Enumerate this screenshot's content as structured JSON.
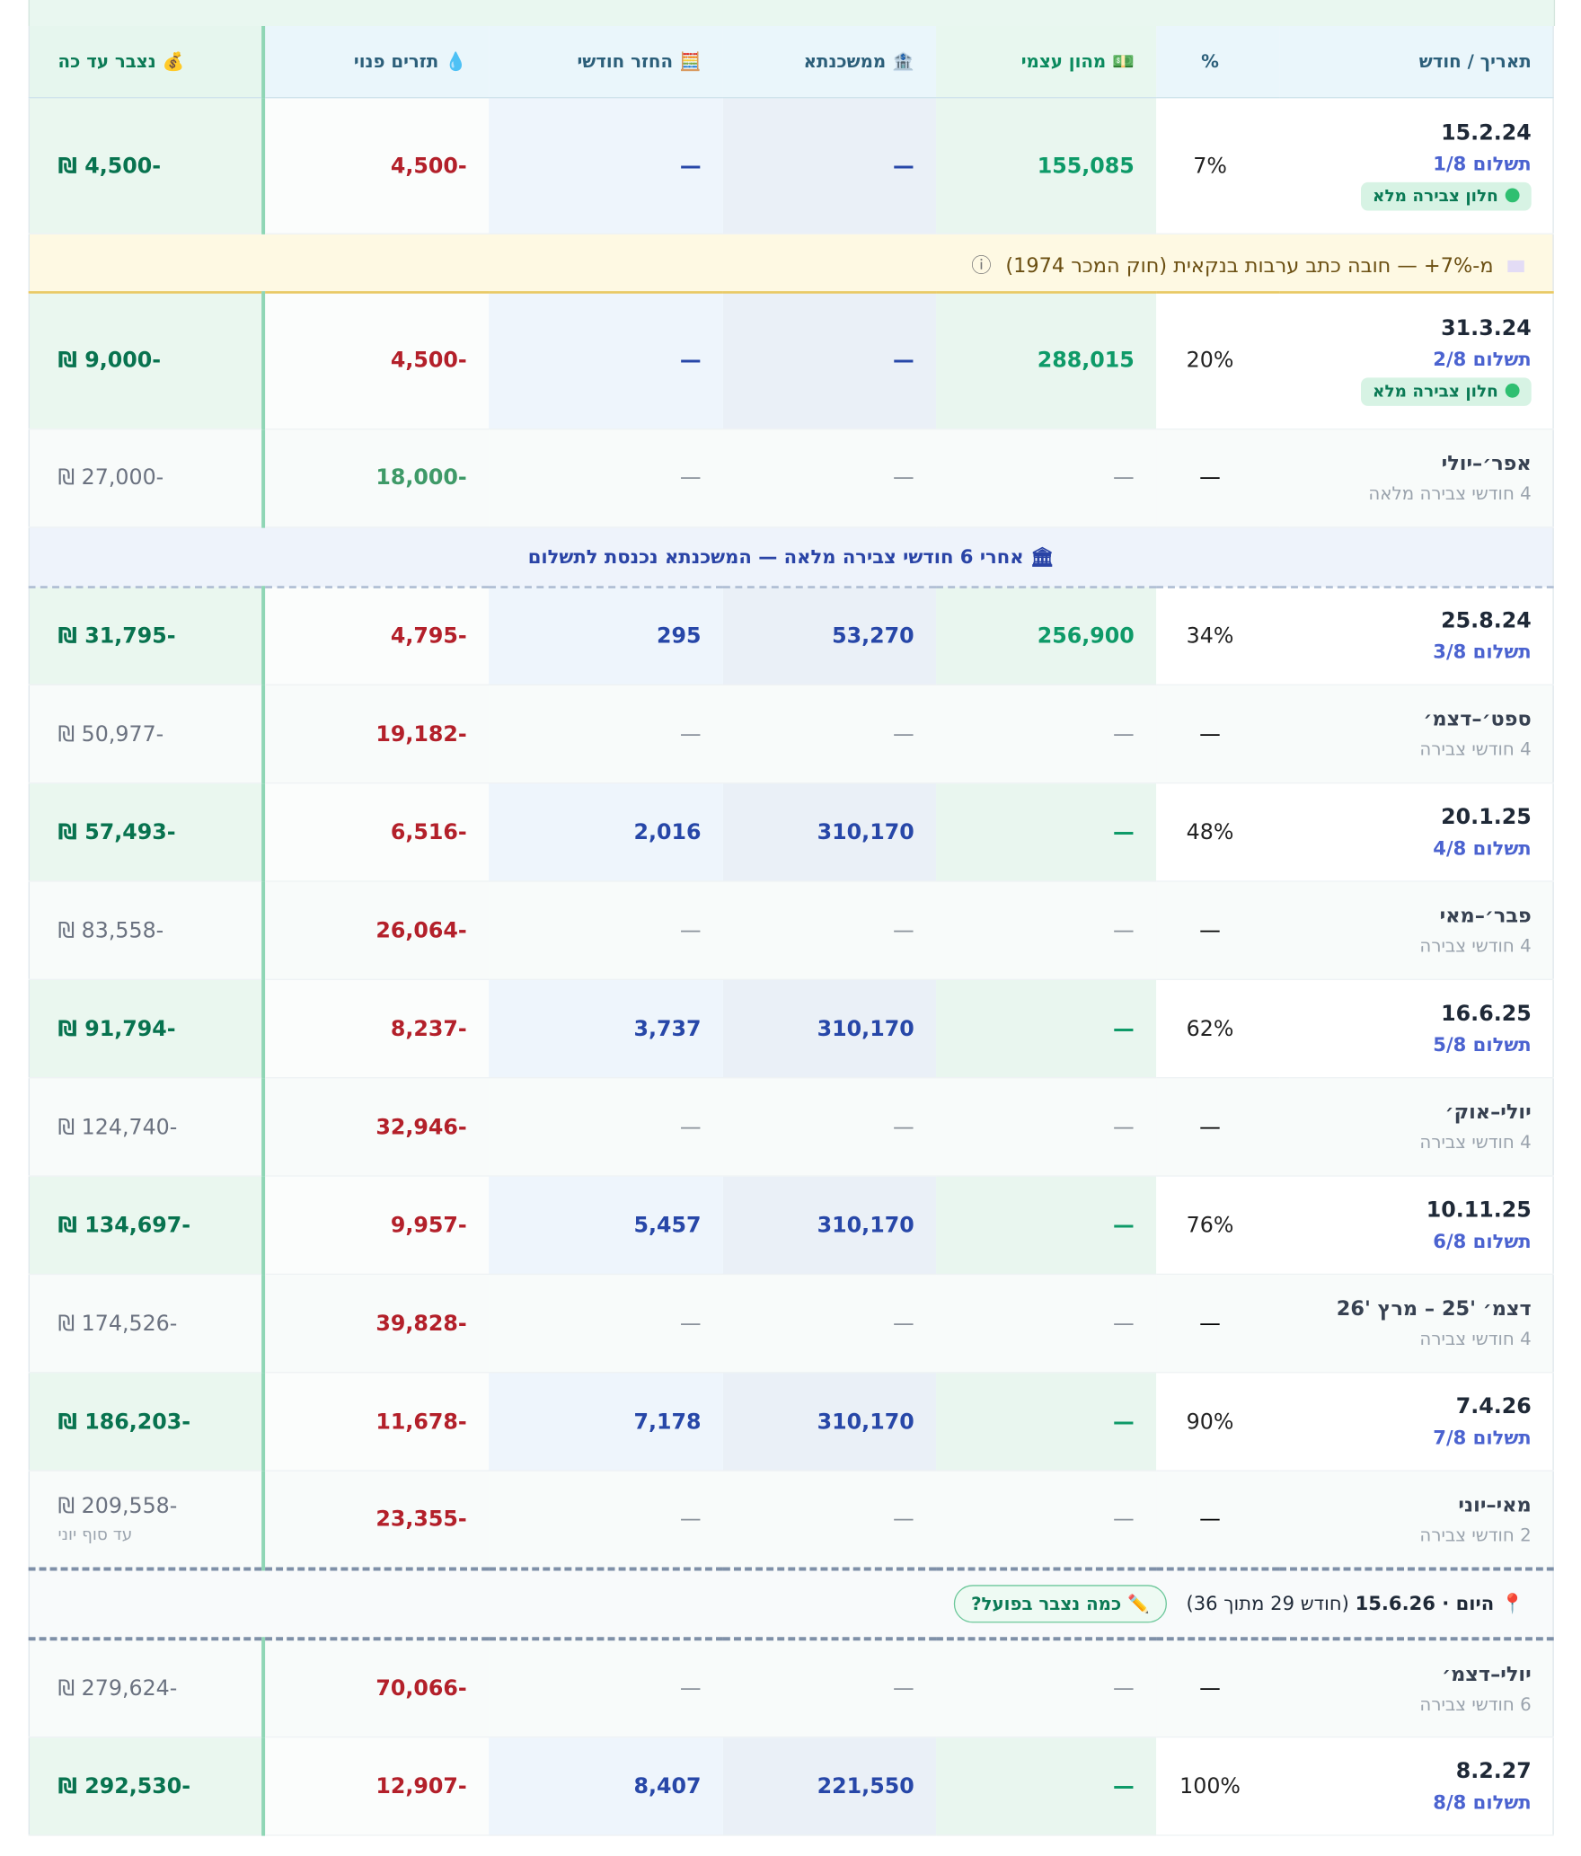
{
  "header": {
    "date": "תאריך / חודש",
    "pct": "%",
    "equity": "💵 מהון עצמי",
    "mortgage": "🏦 ממשכנתא",
    "repay": "🧮 החזר חודשי",
    "flow": "💧 תזרים פנוי",
    "total": "💰 נצבר עד כה"
  },
  "rows": [
    {
      "kind": "payment",
      "date": "15.2.24",
      "sub": "תשלום 1/8",
      "badge": "חלון צבירה מלא",
      "pct": "7%",
      "equity": "155,085",
      "mortgage": "—",
      "repay": "—",
      "flow": "4,500-",
      "total": "₪ 4,500-"
    },
    {
      "kind": "note",
      "text": "מ-7%+ — חובה כתב ערבות בנקאית (חוק המכר 1974)",
      "icon": "ⓘ"
    },
    {
      "kind": "payment",
      "date": "31.3.24",
      "sub": "תשלום 2/8",
      "badge": "חלון צבירה מלא",
      "pct": "20%",
      "equity": "288,015",
      "mortgage": "—",
      "repay": "—",
      "flow": "4,500-",
      "total": "₪ 9,000-"
    },
    {
      "kind": "summary",
      "date": "אפר׳–יולי",
      "sub": "4 חודשי צבירה מלאה",
      "pct": "—",
      "equity": "—",
      "mortgage": "—",
      "repay": "—",
      "flow": "18,000-",
      "flow_color": "#3f9a68",
      "total": "₪ 27,000-"
    },
    {
      "kind": "banner",
      "text": "🏛 אחרי 6 חודשי צבירה מלאה — המשכנתא נכנסת לתשלום"
    },
    {
      "kind": "payment",
      "date": "25.8.24",
      "sub": "תשלום 3/8",
      "pct": "34%",
      "equity": "256,900",
      "mortgage": "53,270",
      "repay": "295",
      "flow": "4,795-",
      "total": "₪ 31,795-"
    },
    {
      "kind": "summary",
      "date": "ספט׳–דצמ׳",
      "sub": "4 חודשי צבירה",
      "pct": "—",
      "equity": "—",
      "mortgage": "—",
      "repay": "—",
      "flow": "19,182-",
      "total": "₪ 50,977-"
    },
    {
      "kind": "payment",
      "date": "20.1.25",
      "sub": "תשלום 4/8",
      "pct": "48%",
      "equity": "—",
      "mortgage": "310,170",
      "repay": "2,016",
      "flow": "6,516-",
      "total": "₪ 57,493-"
    },
    {
      "kind": "summary",
      "date": "פבר׳–מאי",
      "sub": "4 חודשי צבירה",
      "pct": "—",
      "equity": "—",
      "mortgage": "—",
      "repay": "—",
      "flow": "26,064-",
      "total": "₪ 83,558-"
    },
    {
      "kind": "payment",
      "date": "16.6.25",
      "sub": "תשלום 5/8",
      "pct": "62%",
      "equity": "—",
      "mortgage": "310,170",
      "repay": "3,737",
      "flow": "8,237-",
      "total": "₪ 91,794-"
    },
    {
      "kind": "summary",
      "date": "יולי–אוק׳",
      "sub": "4 חודשי צבירה",
      "pct": "—",
      "equity": "—",
      "mortgage": "—",
      "repay": "—",
      "flow": "32,946-",
      "total": "₪ 124,740-"
    },
    {
      "kind": "payment",
      "date": "10.11.25",
      "sub": "תשלום 6/8",
      "pct": "76%",
      "equity": "—",
      "mortgage": "310,170",
      "repay": "5,457",
      "flow": "9,957-",
      "total": "₪ 134,697-"
    },
    {
      "kind": "summary",
      "date": "דצמ׳ '25 – מרץ '26",
      "sub": "4 חודשי צבירה",
      "pct": "—",
      "equity": "—",
      "mortgage": "—",
      "repay": "—",
      "flow": "39,828-",
      "total": "₪ 174,526-"
    },
    {
      "kind": "payment",
      "date": "7.4.26",
      "sub": "תשלום 7/8",
      "pct": "90%",
      "equity": "—",
      "mortgage": "310,170",
      "repay": "7,178",
      "flow": "11,678-",
      "total": "₪ 186,203-"
    },
    {
      "kind": "summary",
      "date": "מאי–יוני",
      "sub": "2 חודשי צבירה",
      "pct": "—",
      "equity": "—",
      "mortgage": "—",
      "repay": "—",
      "flow": "23,355-",
      "total": "₪ 209,558-",
      "total_note": "עד סוף יוני"
    },
    {
      "kind": "today",
      "label": "📍 היום · 15.6.26",
      "detail": "(חודש 29 מתוך 36)",
      "button": "✏️ כמה נצבר בפועל?"
    },
    {
      "kind": "summary",
      "date": "יולי–דצמ׳",
      "sub": "6 חודשי צבירה",
      "pct": "—",
      "equity": "—",
      "mortgage": "—",
      "repay": "—",
      "flow": "70,066-",
      "total": "₪ 279,624-"
    },
    {
      "kind": "payment",
      "date": "8.2.27",
      "sub": "תשלום 8/8",
      "pct": "100%",
      "equity": "—",
      "mortgage": "221,550",
      "repay": "8,407",
      "flow": "12,907-",
      "total": "₪ 292,530-"
    }
  ]
}
